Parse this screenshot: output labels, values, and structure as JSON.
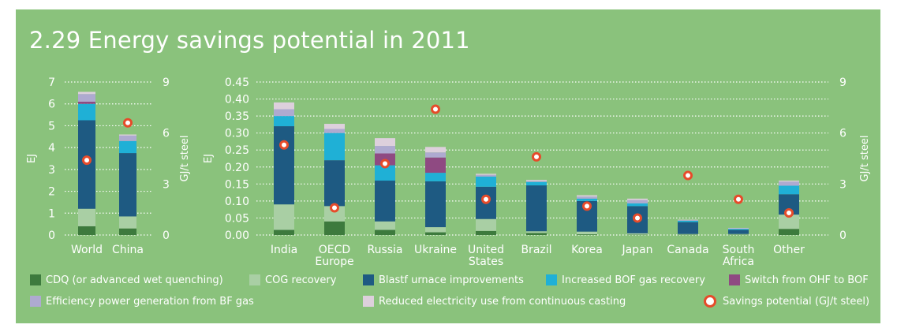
{
  "title": "2.29 Energy savings potential in 2011",
  "legend": [
    {
      "key": "cdq",
      "label": "CDQ (or advanced wet quenching)",
      "color": "#3d7a3d"
    },
    {
      "key": "cog",
      "label": "COG recovery",
      "color": "#a9cfa4"
    },
    {
      "key": "bf",
      "label": "Blastf urnace improvements",
      "color": "#1e5a82"
    },
    {
      "key": "bof",
      "label": "Increased BOF gas recovery",
      "color": "#1fb0d6"
    },
    {
      "key": "ohf",
      "label": "Switch from OHF to BOF",
      "color": "#8f4a82"
    },
    {
      "key": "eff",
      "label": "Efficiency power generation from BF gas",
      "color": "#aeaad0"
    },
    {
      "key": "cast",
      "label": "Reduced electricity use from continuous casting",
      "color": "#ddd0dc"
    },
    {
      "key": "sav",
      "label": "Savings potential (GJ/t steel)",
      "color": "#e64b2a"
    }
  ],
  "chart_data": [
    {
      "type": "bar",
      "stacked": true,
      "categories": [
        "World",
        "China"
      ],
      "ylabel": "EJ",
      "ylim": [
        0,
        7
      ],
      "yticks": [
        "0",
        "1",
        "2",
        "3",
        "4",
        "5",
        "6",
        "7"
      ],
      "y2label": "GJ/t steel",
      "y2lim": [
        0,
        9
      ],
      "y2ticks": [
        "0",
        "3",
        "6",
        "9"
      ],
      "grid": "dotted",
      "series": [
        {
          "name": "CDQ (or advanced wet quenching)",
          "values": [
            0.4,
            0.3
          ]
        },
        {
          "name": "COG recovery",
          "values": [
            0.8,
            0.55
          ]
        },
        {
          "name": "Blastf urnace improvements",
          "values": [
            4.05,
            2.9
          ]
        },
        {
          "name": "Increased BOF gas recovery",
          "values": [
            0.75,
            0.55
          ]
        },
        {
          "name": "Switch from OHF to BOF",
          "values": [
            0.1,
            0
          ]
        },
        {
          "name": "Efficiency power generation from BF gas",
          "values": [
            0.35,
            0.25
          ]
        },
        {
          "name": "Reduced electricity use from continuous casting",
          "values": [
            0.1,
            0.05
          ]
        }
      ],
      "savings_potential": [
        4.4,
        6.6
      ]
    },
    {
      "type": "bar",
      "stacked": true,
      "categories": [
        "India",
        "OECD Europe",
        "Russia",
        "Ukraine",
        "United States",
        "Brazil",
        "Korea",
        "Japan",
        "Canada",
        "South Africa",
        "Other"
      ],
      "ylabel": "EJ",
      "ylim": [
        0,
        0.45
      ],
      "yticks": [
        "0.00",
        "0.05",
        "0.10",
        "0.15",
        "0.20",
        "0.25",
        "0.30",
        "0.35",
        "0.40",
        "0.45"
      ],
      "y2label": "GJ/t steel",
      "y2lim": [
        0,
        9
      ],
      "y2ticks": [
        "0",
        "3",
        "6",
        "9"
      ],
      "grid": "dotted",
      "series": [
        {
          "name": "CDQ (or advanced wet quenching)",
          "values": [
            0.015,
            0.04,
            0.015,
            0.008,
            0.012,
            0.006,
            0.002,
            0.001,
            0.001,
            0.001,
            0.018
          ]
        },
        {
          "name": "COG recovery",
          "values": [
            0.075,
            0.045,
            0.025,
            0.015,
            0.035,
            0.005,
            0.008,
            0.004,
            0.002,
            0.002,
            0.042
          ]
        },
        {
          "name": "Blastf urnace improvements",
          "values": [
            0.23,
            0.135,
            0.12,
            0.135,
            0.095,
            0.135,
            0.09,
            0.08,
            0.035,
            0.012,
            0.06
          ]
        },
        {
          "name": "Increased BOF gas recovery",
          "values": [
            0.03,
            0.08,
            0.045,
            0.025,
            0.03,
            0.01,
            0.007,
            0.008,
            0.004,
            0.003,
            0.025
          ]
        },
        {
          "name": "Switch from OHF to BOF",
          "values": [
            0,
            0,
            0.035,
            0.045,
            0,
            0,
            0,
            0,
            0,
            0,
            0
          ]
        },
        {
          "name": "Efficiency power generation from BF gas",
          "values": [
            0.02,
            0.012,
            0.022,
            0.015,
            0.005,
            0.003,
            0.006,
            0.01,
            0.002,
            0.002,
            0.012
          ]
        },
        {
          "name": "Reduced electricity use from continuous casting",
          "values": [
            0.02,
            0.015,
            0.023,
            0.016,
            0.003,
            0.003,
            0.004,
            0.004,
            0.001,
            0.001,
            0.003
          ]
        }
      ],
      "savings_potential": [
        5.3,
        1.6,
        4.2,
        7.4,
        2.1,
        4.6,
        1.7,
        1.0,
        3.5,
        2.1,
        1.3
      ]
    }
  ]
}
